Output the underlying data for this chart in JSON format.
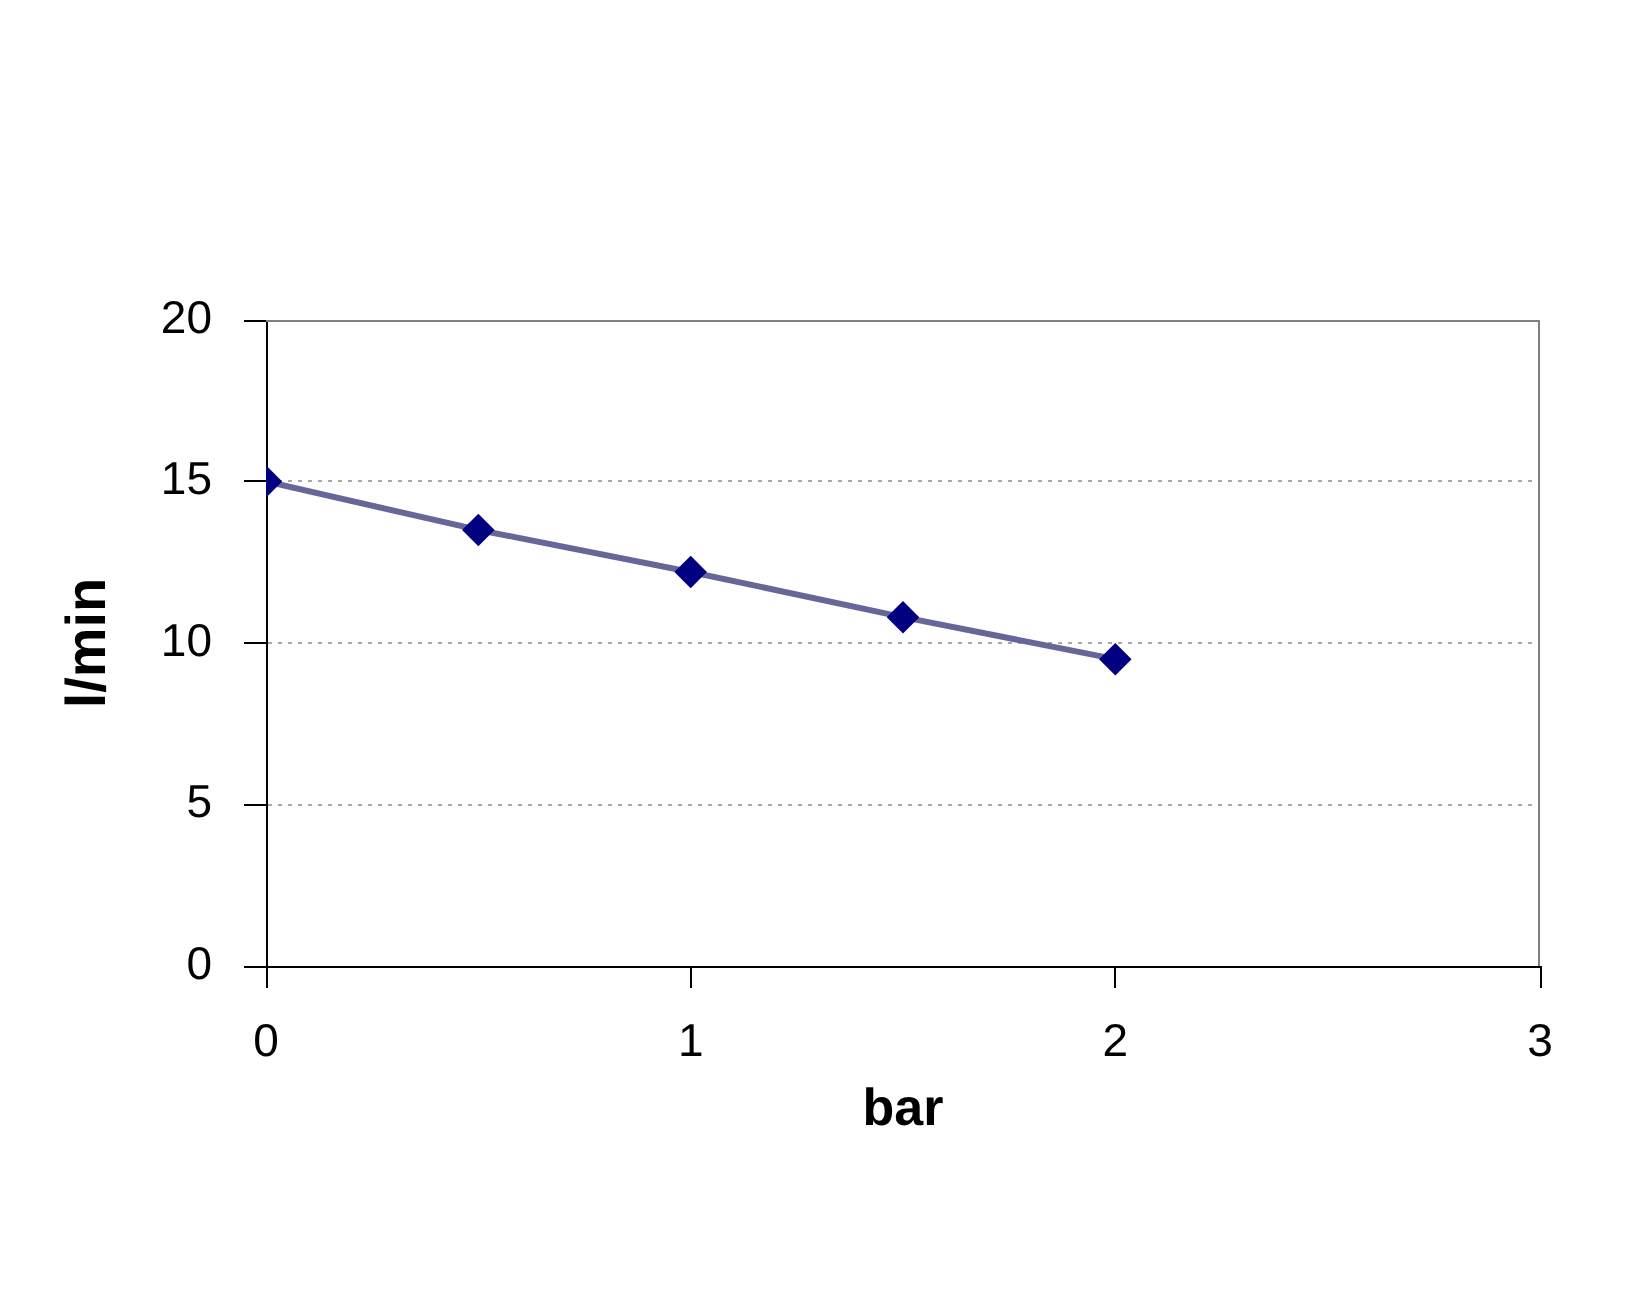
{
  "chart_data": {
    "type": "line",
    "xlabel": "bar",
    "ylabel": "l/min",
    "x": [
      0,
      0.5,
      1,
      1.5,
      2
    ],
    "series": [
      {
        "color": "#666699",
        "colors": [
          "#000080",
          "#000080",
          "#000080",
          "#000080",
          "#000080"
        ],
        "values": [
          15,
          13.5,
          12.2,
          10.8,
          9.5
        ]
      }
    ],
    "xlim": [
      0,
      3
    ],
    "xticks": [
      0,
      1,
      2,
      3
    ],
    "ylim": [
      0,
      20
    ],
    "yticks": [
      0,
      5,
      10,
      15,
      20
    ],
    "grid": "y",
    "marker": "diamond",
    "line_style": "solid"
  }
}
